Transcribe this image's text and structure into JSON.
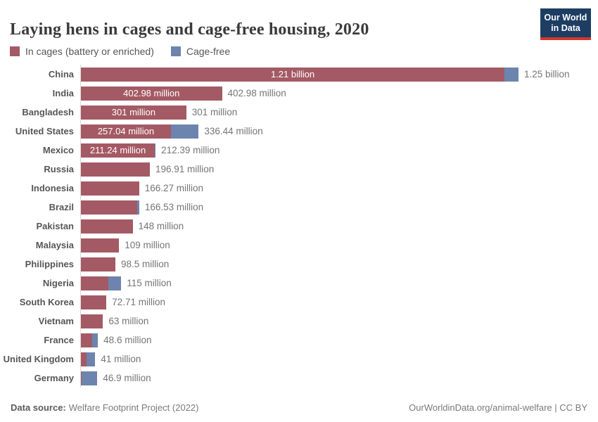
{
  "header": {
    "title": "Laying hens in cages and cage-free housing, 2020",
    "logo_line1": "Our World",
    "logo_line2": "in Data"
  },
  "legend": [
    {
      "label": "In cages (battery or enriched)",
      "color": "#a45a64"
    },
    {
      "label": "Cage-free",
      "color": "#6c84ae"
    }
  ],
  "colors": {
    "in_cages": "#a45a64",
    "cage_free": "#6c84ae",
    "logo_bg": "#1d3d63",
    "logo_accent": "#d3362d",
    "axis_line": "#dcdcdc"
  },
  "footer": {
    "source_label": "Data source:",
    "source_text": "Welfare Footprint Project (2022)",
    "right_text": "OurWorldinData.org/animal-welfare | CC BY"
  },
  "chart_data": {
    "type": "bar",
    "orientation": "horizontal",
    "stacked": true,
    "unit": "million hens",
    "x_max_million": 1250,
    "series_names": [
      "In cages (battery or enriched)",
      "Cage-free"
    ],
    "rows": [
      {
        "country": "China",
        "in_cages": 1210,
        "cage_free": 40,
        "inside_label": "1.21 billion",
        "total_label": "1.25 billion"
      },
      {
        "country": "India",
        "in_cages": 402.98,
        "cage_free": 0,
        "inside_label": "402.98 million",
        "total_label": "402.98 million"
      },
      {
        "country": "Bangladesh",
        "in_cages": 301,
        "cage_free": 0,
        "inside_label": "301 million",
        "total_label": "301 million"
      },
      {
        "country": "United States",
        "in_cages": 257.04,
        "cage_free": 79.4,
        "inside_label": "257.04 million",
        "total_label": "336.44 million"
      },
      {
        "country": "Mexico",
        "in_cages": 211.24,
        "cage_free": 1.15,
        "inside_label": "211.24 million",
        "total_label": "212.39 million"
      },
      {
        "country": "Russia",
        "in_cages": 196.91,
        "cage_free": 0,
        "total_label": "196.91 million"
      },
      {
        "country": "Indonesia",
        "in_cages": 166.27,
        "cage_free": 0,
        "total_label": "166.27 million"
      },
      {
        "country": "Brazil",
        "in_cages": 161,
        "cage_free": 5.5,
        "total_label": "166.53 million"
      },
      {
        "country": "Pakistan",
        "in_cages": 148,
        "cage_free": 0,
        "total_label": "148 million"
      },
      {
        "country": "Malaysia",
        "in_cages": 109,
        "cage_free": 0,
        "total_label": "109 million"
      },
      {
        "country": "Philippines",
        "in_cages": 98.5,
        "cage_free": 0,
        "total_label": "98.5 million"
      },
      {
        "country": "Nigeria",
        "in_cages": 79,
        "cage_free": 36,
        "total_label": "115 million"
      },
      {
        "country": "South Korea",
        "in_cages": 72.71,
        "cage_free": 0,
        "total_label": "72.71 million"
      },
      {
        "country": "Vietnam",
        "in_cages": 63,
        "cage_free": 0,
        "total_label": "63 million"
      },
      {
        "country": "France",
        "in_cages": 32,
        "cage_free": 16.6,
        "total_label": "48.6 million"
      },
      {
        "country": "United Kingdom",
        "in_cages": 16,
        "cage_free": 25,
        "total_label": "41 million"
      },
      {
        "country": "Germany",
        "in_cages": 2,
        "cage_free": 44.9,
        "total_label": "46.9 million"
      }
    ]
  }
}
